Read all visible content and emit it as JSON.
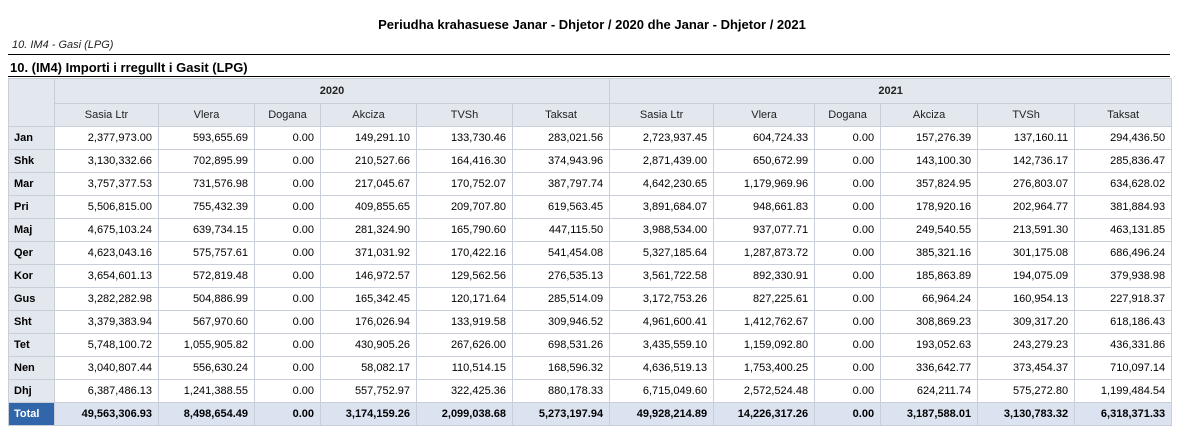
{
  "report": {
    "title": "Periudha krahasuese  Janar - Dhjetor / 2020 dhe Janar - Dhjetor / 2021",
    "subtitle": "10. IM4 - Gasi (LPG)",
    "section_title": "10. (IM4) Importi i rregullt i Gasit (LPG)"
  },
  "table": {
    "years": [
      "2020",
      "2021"
    ],
    "columns": [
      "Sasia Ltr",
      "Vlera",
      "Dogana",
      "Akciza",
      "TVSh",
      "Taksat"
    ],
    "rows": [
      {
        "month": "Jan",
        "y2020": [
          "2,377,973.00",
          "593,655.69",
          "0.00",
          "149,291.10",
          "133,730.46",
          "283,021.56"
        ],
        "y2021": [
          "2,723,937.45",
          "604,724.33",
          "0.00",
          "157,276.39",
          "137,160.11",
          "294,436.50"
        ]
      },
      {
        "month": "Shk",
        "y2020": [
          "3,130,332.66",
          "702,895.99",
          "0.00",
          "210,527.66",
          "164,416.30",
          "374,943.96"
        ],
        "y2021": [
          "2,871,439.00",
          "650,672.99",
          "0.00",
          "143,100.30",
          "142,736.17",
          "285,836.47"
        ]
      },
      {
        "month": "Mar",
        "y2020": [
          "3,757,377.53",
          "731,576.98",
          "0.00",
          "217,045.67",
          "170,752.07",
          "387,797.74"
        ],
        "y2021": [
          "4,642,230.65",
          "1,179,969.96",
          "0.00",
          "357,824.95",
          "276,803.07",
          "634,628.02"
        ]
      },
      {
        "month": "Pri",
        "y2020": [
          "5,506,815.00",
          "755,432.39",
          "0.00",
          "409,855.65",
          "209,707.80",
          "619,563.45"
        ],
        "y2021": [
          "3,891,684.07",
          "948,661.83",
          "0.00",
          "178,920.16",
          "202,964.77",
          "381,884.93"
        ]
      },
      {
        "month": "Maj",
        "y2020": [
          "4,675,103.24",
          "639,734.15",
          "0.00",
          "281,324.90",
          "165,790.60",
          "447,115.50"
        ],
        "y2021": [
          "3,988,534.00",
          "937,077.71",
          "0.00",
          "249,540.55",
          "213,591.30",
          "463,131.85"
        ]
      },
      {
        "month": "Qer",
        "y2020": [
          "4,623,043.16",
          "575,757.61",
          "0.00",
          "371,031.92",
          "170,422.16",
          "541,454.08"
        ],
        "y2021": [
          "5,327,185.64",
          "1,287,873.72",
          "0.00",
          "385,321.16",
          "301,175.08",
          "686,496.24"
        ]
      },
      {
        "month": "Kor",
        "y2020": [
          "3,654,601.13",
          "572,819.48",
          "0.00",
          "146,972.57",
          "129,562.56",
          "276,535.13"
        ],
        "y2021": [
          "3,561,722.58",
          "892,330.91",
          "0.00",
          "185,863.89",
          "194,075.09",
          "379,938.98"
        ]
      },
      {
        "month": "Gus",
        "y2020": [
          "3,282,282.98",
          "504,886.99",
          "0.00",
          "165,342.45",
          "120,171.64",
          "285,514.09"
        ],
        "y2021": [
          "3,172,753.26",
          "827,225.61",
          "0.00",
          "66,964.24",
          "160,954.13",
          "227,918.37"
        ]
      },
      {
        "month": "Sht",
        "y2020": [
          "3,379,383.94",
          "567,970.60",
          "0.00",
          "176,026.94",
          "133,919.58",
          "309,946.52"
        ],
        "y2021": [
          "4,961,600.41",
          "1,412,762.67",
          "0.00",
          "308,869.23",
          "309,317.20",
          "618,186.43"
        ]
      },
      {
        "month": "Tet",
        "y2020": [
          "5,748,100.72",
          "1,055,905.82",
          "0.00",
          "430,905.26",
          "267,626.00",
          "698,531.26"
        ],
        "y2021": [
          "3,435,559.10",
          "1,159,092.80",
          "0.00",
          "193,052.63",
          "243,279.23",
          "436,331.86"
        ]
      },
      {
        "month": "Nen",
        "y2020": [
          "3,040,807.44",
          "556,630.24",
          "0.00",
          "58,082.17",
          "110,514.15",
          "168,596.32"
        ],
        "y2021": [
          "4,636,519.13",
          "1,753,400.25",
          "0.00",
          "336,642.77",
          "373,454.37",
          "710,097.14"
        ]
      },
      {
        "month": "Dhj",
        "y2020": [
          "6,387,486.13",
          "1,241,388.55",
          "0.00",
          "557,752.97",
          "322,425.36",
          "880,178.33"
        ],
        "y2021": [
          "6,715,049.60",
          "2,572,524.48",
          "0.00",
          "624,211.74",
          "575,272.80",
          "1,199,484.54"
        ]
      }
    ],
    "total": {
      "label": "Total",
      "y2020": [
        "49,563,306.93",
        "8,498,654.49",
        "0.00",
        "3,174,159.26",
        "2,099,038.68",
        "5,273,197.94"
      ],
      "y2021": [
        "49,928,214.89",
        "14,226,317.26",
        "0.00",
        "3,187,588.01",
        "3,130,783.32",
        "6,318,371.33"
      ]
    }
  }
}
